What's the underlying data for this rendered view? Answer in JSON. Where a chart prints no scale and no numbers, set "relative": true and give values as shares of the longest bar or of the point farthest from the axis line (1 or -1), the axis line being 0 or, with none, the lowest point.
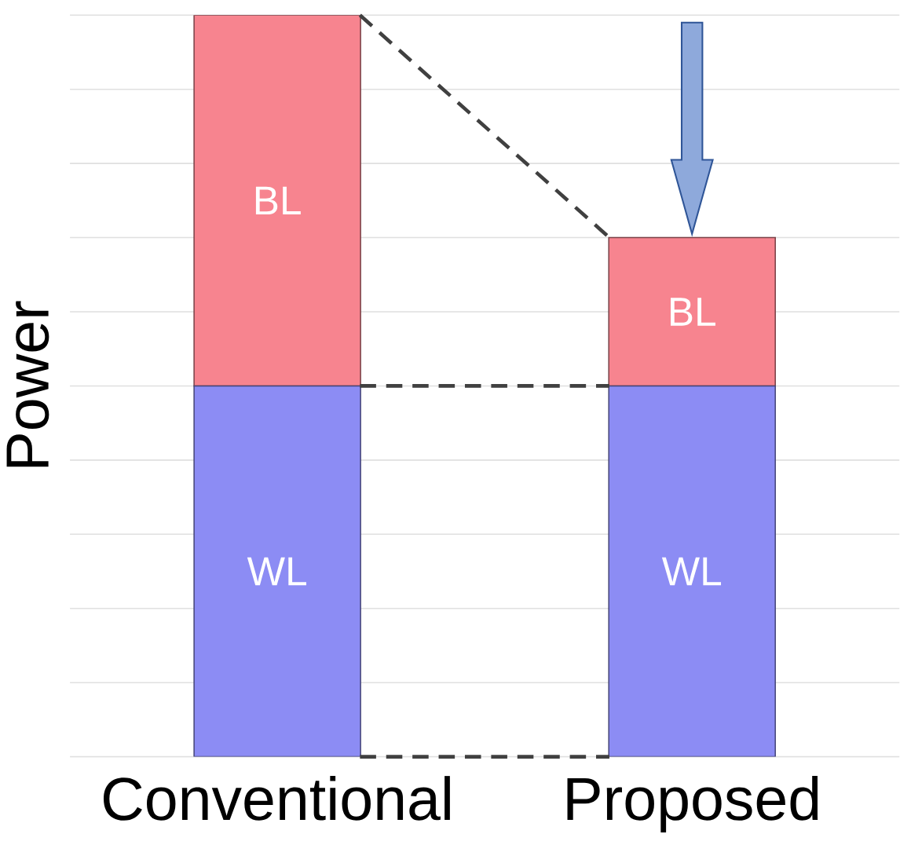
{
  "chart_data": {
    "type": "bar",
    "stacked": true,
    "relative": true,
    "grid": "y",
    "ylabel": "Power",
    "categories": [
      "Conventional",
      "Proposed"
    ],
    "series": [
      {
        "name": "WL",
        "color": "#8c8cf4",
        "values": [
          0.5,
          0.5
        ]
      },
      {
        "name": "BL",
        "color": "#f7848f",
        "values": [
          0.5,
          0.2
        ]
      }
    ]
  }
}
